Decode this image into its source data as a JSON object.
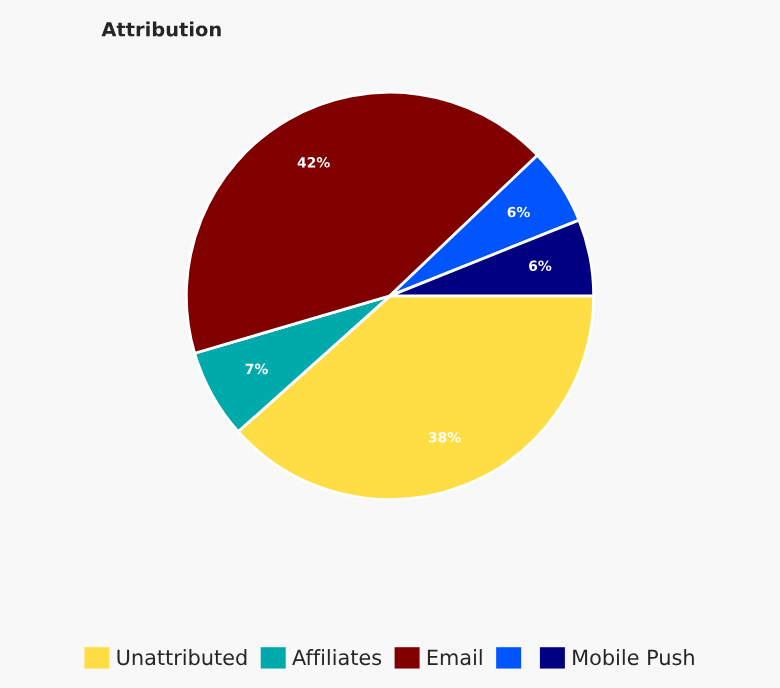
{
  "chart_data": {
    "type": "pie",
    "title": "Attribution",
    "categories": [
      "Unattributed",
      "Affiliates",
      "Email",
      null,
      "Mobile Push"
    ],
    "values": [
      38,
      7,
      42,
      6,
      6
    ],
    "value_labels": [
      "38%",
      "7%",
      "42%",
      "6%",
      "6%"
    ],
    "colors": [
      "#ffdd44",
      "#00aaaa",
      "#800000",
      "#0055ff",
      "#000080"
    ],
    "legend": "bottom"
  }
}
